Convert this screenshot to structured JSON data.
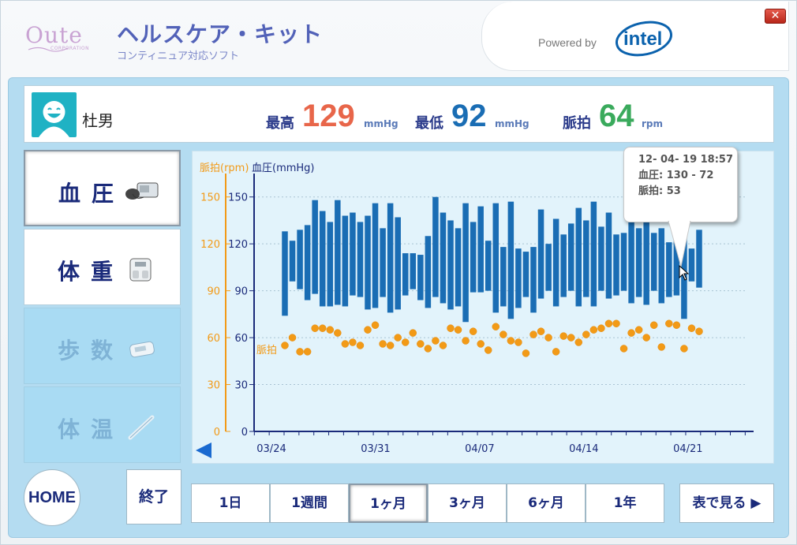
{
  "header": {
    "logo_text": "Oute",
    "logo_sub": "CORPORATION",
    "title": "ヘルスケア・キット",
    "subtitle": "コンティニュア対応ソフト",
    "powered_by": "Powered by",
    "intel": "intel",
    "close_label": "✕"
  },
  "user": {
    "name": "杜男",
    "max_label": "最高",
    "max_value": "129",
    "min_label": "最低",
    "min_value": "92",
    "pulse_label": "脈拍",
    "pulse_value": "64",
    "bp_unit": "mmHg",
    "pulse_unit": "rpm"
  },
  "sidebar": {
    "items": [
      {
        "label": "血圧",
        "icon": "blood-pressure-monitor-icon"
      },
      {
        "label": "体重",
        "icon": "scale-icon"
      },
      {
        "label": "歩数",
        "icon": "pedometer-icon"
      },
      {
        "label": "体温",
        "icon": "thermometer-icon"
      }
    ]
  },
  "tooltip": {
    "datetime": "12- 04- 19  18:57",
    "bp": "血圧: 130 - 72",
    "pulse": "脈拍:  53"
  },
  "bottom": {
    "home": "HOME",
    "exit": "終了",
    "ranges": [
      "1日",
      "1週間",
      "1ヶ月",
      "3ヶ月",
      "6ヶ月",
      "1年"
    ],
    "table_view": "表で見る ▶"
  },
  "colors": {
    "bar": "#1a6db4",
    "pulse_dot": "#f29a17",
    "max_value": "#e8664a",
    "min_value": "#1a6db4",
    "pulse_value": "#3aaa5c"
  },
  "chart_data": {
    "type": "bar",
    "title": "",
    "pulse_axis_label": "脈拍(rpm)",
    "bp_axis_label": "血圧(mmHg)",
    "pulse_series_label": "脈拍",
    "y_ticks": [
      0,
      30,
      60,
      90,
      120,
      150
    ],
    "ylim": [
      0,
      165
    ],
    "x_tick_labels": [
      "03/24",
      "03/31",
      "04/07",
      "04/14",
      "04/21"
    ],
    "x_tick_index": [
      0,
      7,
      14,
      21,
      28
    ],
    "days": 32,
    "bp_series": [
      [
        128,
        74
      ],
      [
        122,
        96
      ],
      [
        129,
        91
      ],
      [
        132,
        84
      ],
      [
        148,
        88
      ],
      [
        141,
        80
      ],
      [
        134,
        80
      ],
      [
        148,
        81
      ],
      [
        138,
        80
      ],
      [
        140,
        87
      ],
      [
        134,
        86
      ],
      [
        138,
        78
      ],
      [
        146,
        79
      ],
      [
        130,
        86
      ],
      [
        146,
        76
      ],
      [
        137,
        78
      ],
      [
        114,
        87
      ],
      [
        114,
        91
      ],
      [
        113,
        84
      ],
      [
        125,
        79
      ],
      [
        150,
        86
      ],
      [
        140,
        82
      ],
      [
        135,
        78
      ],
      [
        130,
        80
      ],
      [
        146,
        70
      ],
      [
        134,
        89
      ],
      [
        144,
        89
      ],
      [
        122,
        90
      ],
      [
        146,
        76
      ],
      [
        118,
        80
      ],
      [
        147,
        72
      ],
      [
        117,
        79
      ],
      [
        115,
        86
      ],
      [
        118,
        76
      ],
      [
        142,
        85
      ],
      [
        120,
        90
      ],
      [
        136,
        80
      ],
      [
        126,
        86
      ],
      [
        133,
        90
      ],
      [
        143,
        80
      ],
      [
        135,
        86
      ],
      [
        147,
        80
      ],
      [
        131,
        90
      ],
      [
        140,
        85
      ],
      [
        126,
        87
      ],
      [
        127,
        90
      ],
      [
        146,
        82
      ],
      [
        130,
        86
      ],
      [
        144,
        81
      ],
      [
        127,
        90
      ],
      [
        130,
        82
      ],
      [
        121,
        86
      ],
      [
        140,
        87
      ],
      [
        130,
        72
      ],
      [
        117,
        96
      ],
      [
        129,
        92
      ]
    ],
    "pulse_series": [
      55,
      60,
      51,
      51,
      66,
      66,
      65,
      63,
      56,
      57,
      55,
      65,
      68,
      56,
      55,
      60,
      57,
      63,
      56,
      53,
      58,
      55,
      66,
      65,
      58,
      64,
      56,
      52,
      67,
      62,
      58,
      57,
      50,
      62,
      64,
      60,
      51,
      61,
      60,
      57,
      62,
      65,
      66,
      69,
      69,
      53,
      63,
      65,
      60,
      68,
      54,
      69,
      68,
      53,
      66,
      64
    ]
  }
}
